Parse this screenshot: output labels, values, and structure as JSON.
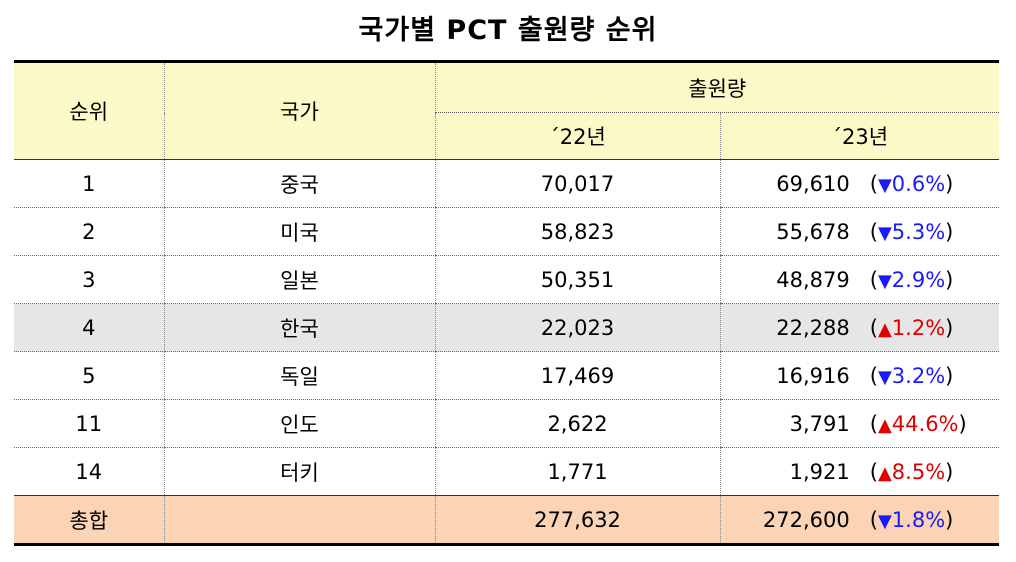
{
  "title": "국가별 PCT 출원량 순위",
  "header": {
    "rank": "순위",
    "country": "국가",
    "amount": "출원량",
    "year1": "´22년",
    "year2": "´23년"
  },
  "rows": [
    {
      "rank": "1",
      "country": "중국",
      "v22": "70,017",
      "v23": "69,610",
      "paren_open": "(",
      "arrow": "▼",
      "change": "0.6%",
      "paren_close": ")",
      "dir": "down"
    },
    {
      "rank": "2",
      "country": "미국",
      "v22": "58,823",
      "v23": "55,678",
      "paren_open": "(",
      "arrow": "▼",
      "change": "5.3%",
      "paren_close": ")",
      "dir": "down"
    },
    {
      "rank": "3",
      "country": "일본",
      "v22": "50,351",
      "v23": "48,879",
      "paren_open": "(",
      "arrow": "▼",
      "change": "2.9%",
      "paren_close": ")",
      "dir": "down"
    },
    {
      "rank": "4",
      "country": "한국",
      "v22": "22,023",
      "v23": "22,288",
      "paren_open": "(",
      "arrow": "▲",
      "change": "1.2%",
      "paren_close": ")",
      "dir": "up"
    },
    {
      "rank": "5",
      "country": "독일",
      "v22": "17,469",
      "v23": "16,916",
      "paren_open": "(",
      "arrow": "▼",
      "change": "3.2%",
      "paren_close": ")",
      "dir": "down"
    },
    {
      "rank": "11",
      "country": "인도",
      "v22": "2,622",
      "v23": "3,791",
      "paren_open": "(",
      "arrow": "▲",
      "change": "44.6%",
      "paren_close": ")",
      "dir": "up"
    },
    {
      "rank": "14",
      "country": "터키",
      "v22": "1,771",
      "v23": "1,921",
      "paren_open": "(",
      "arrow": "▲",
      "change": "8.5%",
      "paren_close": ")",
      "dir": "up"
    }
  ],
  "total": {
    "label": "총합",
    "v22": "277,632",
    "v23": "272,600",
    "paren_open": "(",
    "arrow": "▼",
    "change": "1.8%",
    "paren_close": ")",
    "dir": "down"
  },
  "colors": {
    "header_bg": "#fdf8c8",
    "highlight_row_bg": "#e6e6e6",
    "total_bg": "#fbd3b5",
    "down": "#1a1aff",
    "up": "#e00000"
  }
}
